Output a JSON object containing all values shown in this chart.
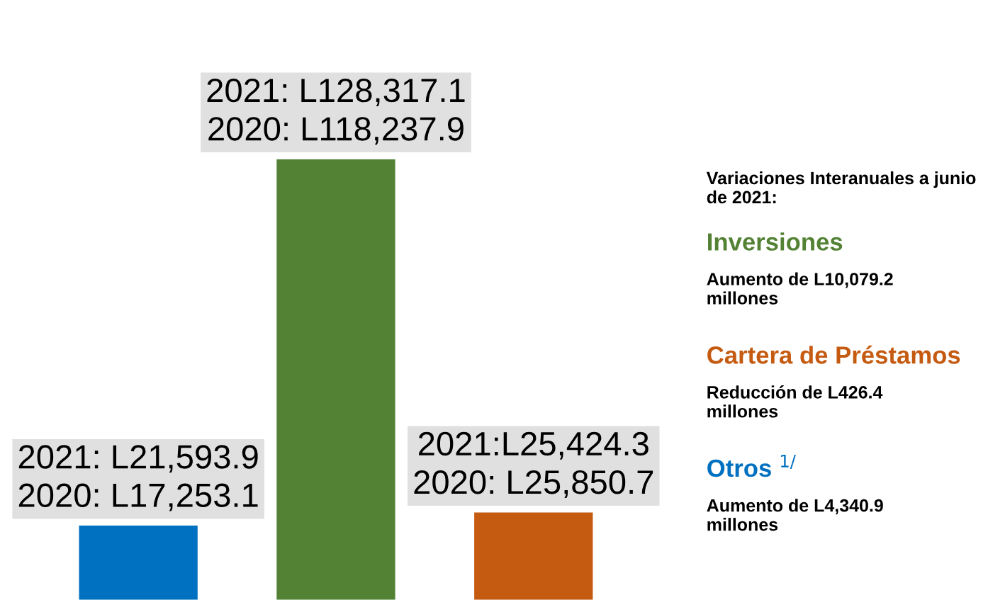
{
  "chart_data": {
    "type": "bar",
    "categories": [
      null,
      null,
      null
    ],
    "values": [
      21593.9,
      128317.1,
      25424.3
    ],
    "colors": [
      "#0070c0",
      "#548235",
      "#c55a11"
    ],
    "value_labels": [
      "2021: L21,593.9\n2020: L17,253.1",
      "2021: L128,317.1\n2020: L118,237.9",
      "2021:L25,424.3\n2020: L25,850.7"
    ],
    "annotations": [
      "Variaciones Interanuales a junio de 2021:",
      "Inversiones",
      "Aumento de L10,079.2 millones",
      "Cartera de Préstamos",
      "Reducción de L426.4 millones",
      "Otros $^{1/}$",
      "Aumento de L4,340.9 millones"
    ]
  }
}
